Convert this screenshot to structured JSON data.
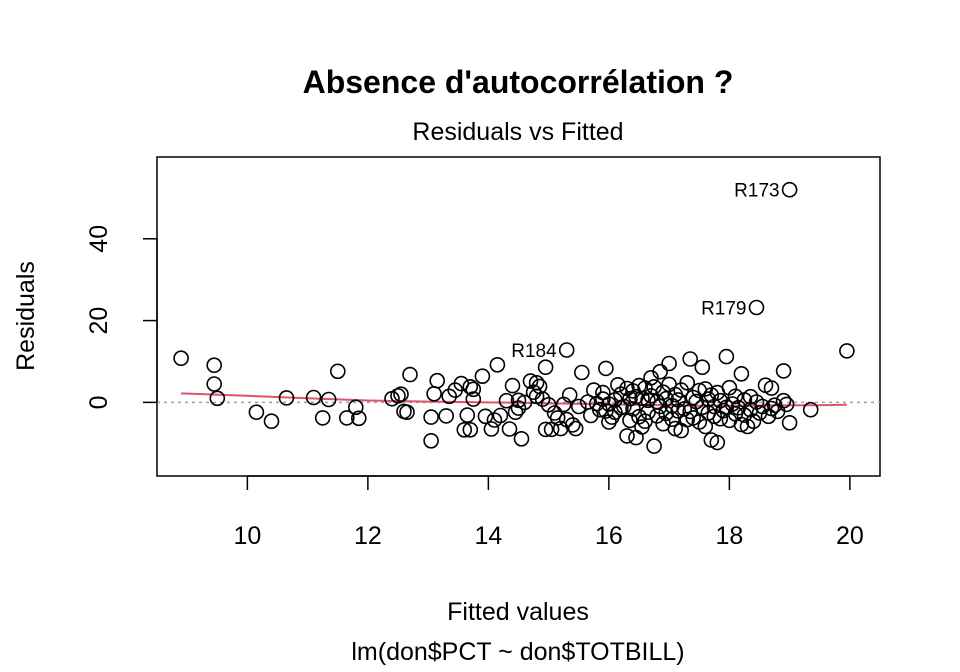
{
  "chart_data": {
    "type": "scatter",
    "title": "Absence d'autocorrélation ?",
    "subtitle": "Residuals vs Fitted",
    "xlabel": "Fitted values",
    "xlabel2": "lm(don$PCT ~ don$TOTBILL)",
    "ylabel": "Residuals",
    "xlim": [
      8.5,
      20.5
    ],
    "ylim": [
      -18,
      60
    ],
    "xticks": [
      "10",
      "12",
      "14",
      "16",
      "18",
      "20"
    ],
    "yticks": [
      "0",
      "20",
      "40"
    ],
    "grid": false,
    "reference_line": {
      "y": 0,
      "style": "dotted",
      "color": "#a0a0a0"
    },
    "smooth_color": "#df536b",
    "point_color": "#000000",
    "labeled_points": [
      {
        "label": "R173",
        "x": 19.0,
        "y": 52.0
      },
      {
        "label": "R179",
        "x": 18.45,
        "y": 23.2
      },
      {
        "label": "R184",
        "x": 15.3,
        "y": 12.8
      }
    ],
    "points": [
      [
        8.9,
        10.8
      ],
      [
        9.45,
        9.1
      ],
      [
        9.45,
        4.5
      ],
      [
        9.5,
        1.0
      ],
      [
        10.15,
        -2.4
      ],
      [
        10.4,
        -4.6
      ],
      [
        10.65,
        1.1
      ],
      [
        11.1,
        1.2
      ],
      [
        11.25,
        -3.8
      ],
      [
        11.35,
        0.7
      ],
      [
        11.5,
        7.6
      ],
      [
        11.65,
        -3.8
      ],
      [
        11.8,
        -1.2
      ],
      [
        11.85,
        -3.9
      ],
      [
        12.4,
        0.9
      ],
      [
        12.5,
        1.6
      ],
      [
        12.55,
        2.0
      ],
      [
        12.6,
        -2.2
      ],
      [
        12.65,
        -2.4
      ],
      [
        12.7,
        6.8
      ],
      [
        13.05,
        -9.4
      ],
      [
        13.05,
        -3.6
      ],
      [
        13.1,
        2.1
      ],
      [
        13.15,
        5.3
      ],
      [
        13.3,
        -3.3
      ],
      [
        13.35,
        1.5
      ],
      [
        13.45,
        3.0
      ],
      [
        13.55,
        4.6
      ],
      [
        13.6,
        -6.7
      ],
      [
        13.65,
        -3.1
      ],
      [
        13.7,
        -6.7
      ],
      [
        13.7,
        3.8
      ],
      [
        13.75,
        0.8
      ],
      [
        13.75,
        3.2
      ],
      [
        13.9,
        6.4
      ],
      [
        13.95,
        -3.4
      ],
      [
        14.05,
        -6.5
      ],
      [
        14.1,
        -4.3
      ],
      [
        14.15,
        9.2
      ],
      [
        14.2,
        -3.2
      ],
      [
        14.3,
        0.4
      ],
      [
        14.35,
        -6.5
      ],
      [
        14.4,
        4.1
      ],
      [
        14.45,
        -2.4
      ],
      [
        14.5,
        0.5
      ],
      [
        14.5,
        -1.4
      ],
      [
        14.55,
        -8.9
      ],
      [
        14.6,
        0.0
      ],
      [
        14.7,
        5.2
      ],
      [
        14.75,
        2.5
      ],
      [
        14.8,
        4.8
      ],
      [
        14.8,
        1.5
      ],
      [
        14.85,
        3.9
      ],
      [
        14.9,
        0.8
      ],
      [
        14.95,
        8.6
      ],
      [
        14.95,
        -6.6
      ],
      [
        15.0,
        -0.6
      ],
      [
        15.05,
        -6.6
      ],
      [
        15.1,
        -2.6
      ],
      [
        15.15,
        -3.8
      ],
      [
        15.2,
        -6.4
      ],
      [
        15.25,
        -0.5
      ],
      [
        15.3,
        -4.2
      ],
      [
        15.35,
        1.8
      ],
      [
        15.4,
        -5.5
      ],
      [
        15.45,
        -6.4
      ],
      [
        15.5,
        -1.0
      ],
      [
        15.55,
        7.3
      ],
      [
        15.65,
        0.1
      ],
      [
        15.7,
        -3.2
      ],
      [
        15.75,
        3.0
      ],
      [
        15.8,
        -0.3
      ],
      [
        15.85,
        -1.8
      ],
      [
        15.9,
        2.4
      ],
      [
        15.9,
        0.8
      ],
      [
        15.95,
        8.3
      ],
      [
        15.95,
        -2.1
      ],
      [
        16.0,
        -0.4
      ],
      [
        16.0,
        -4.8
      ],
      [
        16.05,
        -3.6
      ],
      [
        16.1,
        0.6
      ],
      [
        16.1,
        -2.4
      ],
      [
        16.15,
        4.3
      ],
      [
        16.2,
        -1.3
      ],
      [
        16.2,
        2.0
      ],
      [
        16.25,
        -1.0
      ],
      [
        16.3,
        -8.2
      ],
      [
        16.3,
        3.4
      ],
      [
        16.35,
        -4.4
      ],
      [
        16.35,
        0.9
      ],
      [
        16.4,
        2.8
      ],
      [
        16.4,
        -1.6
      ],
      [
        16.45,
        -8.6
      ],
      [
        16.45,
        1.4
      ],
      [
        16.5,
        4.1
      ],
      [
        16.5,
        -3.5
      ],
      [
        16.55,
        1.0
      ],
      [
        16.55,
        -6.0
      ],
      [
        16.6,
        3.5
      ],
      [
        16.6,
        -4.6
      ],
      [
        16.65,
        0.5
      ],
      [
        16.65,
        -2.4
      ],
      [
        16.7,
        6.0
      ],
      [
        16.7,
        1.6
      ],
      [
        16.75,
        -10.7
      ],
      [
        16.75,
        3.8
      ],
      [
        16.8,
        0.2
      ],
      [
        16.8,
        -3.3
      ],
      [
        16.85,
        7.5
      ],
      [
        16.85,
        -1.0
      ],
      [
        16.9,
        2.5
      ],
      [
        16.9,
        -5.2
      ],
      [
        16.95,
        0.9
      ],
      [
        16.95,
        -2.7
      ],
      [
        17.0,
        9.5
      ],
      [
        17.0,
        4.4
      ],
      [
        17.05,
        -0.8
      ],
      [
        17.05,
        -4.1
      ],
      [
        17.1,
        1.9
      ],
      [
        17.1,
        -6.4
      ],
      [
        17.15,
        -2.1
      ],
      [
        17.15,
        0.6
      ],
      [
        17.2,
        -6.9
      ],
      [
        17.2,
        3.0
      ],
      [
        17.25,
        -1.6
      ],
      [
        17.3,
        -4.2
      ],
      [
        17.3,
        4.8
      ],
      [
        17.35,
        10.6
      ],
      [
        17.35,
        -2.2
      ],
      [
        17.4,
        1.2
      ],
      [
        17.4,
        -3.8
      ],
      [
        17.45,
        0.2
      ],
      [
        17.5,
        2.9
      ],
      [
        17.5,
        -4.8
      ],
      [
        17.55,
        8.6
      ],
      [
        17.55,
        -1.2
      ],
      [
        17.6,
        3.3
      ],
      [
        17.6,
        -5.9
      ],
      [
        17.65,
        0.8
      ],
      [
        17.65,
        -2.6
      ],
      [
        17.7,
        -9.2
      ],
      [
        17.7,
        1.8
      ],
      [
        17.75,
        -3.4
      ],
      [
        17.75,
        -1.0
      ],
      [
        17.8,
        -9.8
      ],
      [
        17.8,
        2.4
      ],
      [
        17.85,
        -4.0
      ],
      [
        17.85,
        0.4
      ],
      [
        17.9,
        -2.0
      ],
      [
        17.95,
        11.2
      ],
      [
        17.95,
        -1.2
      ],
      [
        18.0,
        3.6
      ],
      [
        18.0,
        -4.4
      ],
      [
        18.05,
        -0.4
      ],
      [
        18.1,
        1.5
      ],
      [
        18.1,
        -2.8
      ],
      [
        18.15,
        -1.3
      ],
      [
        18.2,
        7.0
      ],
      [
        18.2,
        -5.4
      ],
      [
        18.25,
        0.6
      ],
      [
        18.25,
        -3.1
      ],
      [
        18.3,
        -5.9
      ],
      [
        18.35,
        1.4
      ],
      [
        18.35,
        -1.8
      ],
      [
        18.4,
        -4.6
      ],
      [
        18.45,
        0.1
      ],
      [
        18.5,
        -2.6
      ],
      [
        18.55,
        -1.0
      ],
      [
        18.6,
        4.2
      ],
      [
        18.65,
        -3.4
      ],
      [
        18.7,
        3.5
      ],
      [
        18.7,
        -1.5
      ],
      [
        18.75,
        -0.7
      ],
      [
        18.8,
        -2.2
      ],
      [
        18.9,
        7.7
      ],
      [
        18.9,
        0.4
      ],
      [
        18.95,
        -0.5
      ],
      [
        19.0,
        -5.0
      ],
      [
        19.35,
        -1.8
      ],
      [
        19.95,
        12.6
      ]
    ],
    "smooth": [
      [
        8.9,
        2.2
      ],
      [
        10,
        1.6
      ],
      [
        11,
        1.0
      ],
      [
        12,
        0.45
      ],
      [
        13,
        0.2
      ],
      [
        14,
        0.0
      ],
      [
        14.5,
        -0.1
      ],
      [
        15,
        -0.25
      ],
      [
        15.5,
        -0.35
      ],
      [
        16,
        -0.5
      ],
      [
        16.5,
        -0.6
      ],
      [
        17,
        -0.7
      ],
      [
        17.5,
        -0.8
      ],
      [
        18,
        -0.8
      ],
      [
        18.5,
        -0.75
      ],
      [
        19,
        -0.7
      ],
      [
        19.5,
        -0.7
      ],
      [
        19.95,
        -0.6
      ]
    ]
  }
}
